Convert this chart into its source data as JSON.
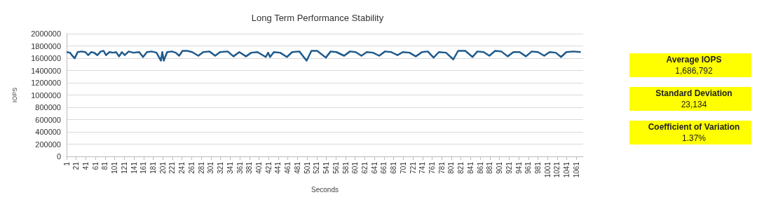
{
  "chart_data": {
    "type": "line",
    "title": "Long Term Performance Stability",
    "xlabel": "Seconds",
    "ylabel": "IOPS",
    "x": [
      1,
      8,
      13,
      18,
      24,
      32,
      40,
      46,
      52,
      58,
      65,
      72,
      78,
      83,
      90,
      98,
      104,
      110,
      116,
      122,
      130,
      140,
      152,
      160,
      168,
      178,
      188,
      197,
      200,
      203,
      210,
      220,
      228,
      235,
      242,
      252,
      262,
      275,
      285,
      298,
      310,
      320,
      336,
      348,
      360,
      374,
      385,
      398,
      415,
      420,
      424,
      432,
      445,
      459,
      470,
      485,
      500,
      510,
      522,
      540,
      550,
      562,
      578,
      590,
      602,
      614,
      625,
      638,
      651,
      663,
      676,
      689,
      700,
      714,
      727,
      740,
      752,
      764,
      775,
      790,
      805,
      815,
      830,
      845,
      855,
      868,
      880,
      892,
      905,
      918,
      930,
      943,
      956,
      968,
      981,
      994,
      1005,
      1018,
      1029,
      1040,
      1055,
      1070
    ],
    "values": [
      1700000,
      1690000,
      1640000,
      1600000,
      1700000,
      1710000,
      1700000,
      1650000,
      1700000,
      1690000,
      1650000,
      1710000,
      1720000,
      1650000,
      1700000,
      1690000,
      1700000,
      1630000,
      1700000,
      1650000,
      1710000,
      1690000,
      1700000,
      1620000,
      1700000,
      1710000,
      1690000,
      1560000,
      1700000,
      1560000,
      1700000,
      1710000,
      1690000,
      1640000,
      1720000,
      1720000,
      1700000,
      1640000,
      1700000,
      1710000,
      1640000,
      1700000,
      1710000,
      1630000,
      1700000,
      1630000,
      1690000,
      1700000,
      1620000,
      1690000,
      1620000,
      1700000,
      1690000,
      1620000,
      1700000,
      1710000,
      1560000,
      1720000,
      1720000,
      1610000,
      1710000,
      1700000,
      1640000,
      1710000,
      1700000,
      1640000,
      1700000,
      1690000,
      1640000,
      1710000,
      1700000,
      1650000,
      1700000,
      1690000,
      1630000,
      1700000,
      1710000,
      1610000,
      1700000,
      1690000,
      1580000,
      1720000,
      1720000,
      1620000,
      1710000,
      1700000,
      1640000,
      1720000,
      1710000,
      1630000,
      1700000,
      1700000,
      1630000,
      1710000,
      1700000,
      1640000,
      1700000,
      1690000,
      1620000,
      1700000,
      1710000,
      1700000
    ],
    "color": "#1f5a8c",
    "xlim": [
      1,
      1075
    ],
    "xticks": [
      1,
      21,
      41,
      61,
      81,
      101,
      121,
      141,
      161,
      181,
      201,
      221,
      241,
      261,
      281,
      301,
      321,
      341,
      361,
      381,
      401,
      421,
      441,
      461,
      481,
      501,
      521,
      541,
      561,
      581,
      601,
      621,
      641,
      661,
      681,
      701,
      721,
      741,
      761,
      781,
      801,
      821,
      841,
      861,
      881,
      901,
      921,
      941,
      961,
      981,
      1001,
      1021,
      1041,
      1061
    ],
    "ylim": [
      0,
      2000000
    ],
    "yticks": [
      0,
      200000,
      400000,
      600000,
      800000,
      1000000,
      1200000,
      1400000,
      1600000,
      1800000,
      2000000
    ],
    "grid": "y",
    "marker": "none",
    "line_style": "solid",
    "annotations": [
      "Average IOPS",
      "1,686,792",
      "Standard Deviation",
      "23,134",
      "Coefficient of Variation",
      "1.37%"
    ]
  }
}
